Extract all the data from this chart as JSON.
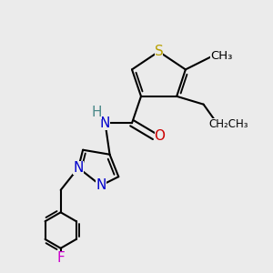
{
  "bg_color": "#ebebeb",
  "atom_colors": {
    "S": "#b8a000",
    "N": "#0000cc",
    "O": "#cc0000",
    "F": "#cc00cc",
    "H": "#4a8888",
    "C": "#000000"
  },
  "bond_color": "#000000",
  "bond_width": 1.5,
  "dbo": 0.12,
  "font_size_atom": 11,
  "font_size_label": 9.5
}
